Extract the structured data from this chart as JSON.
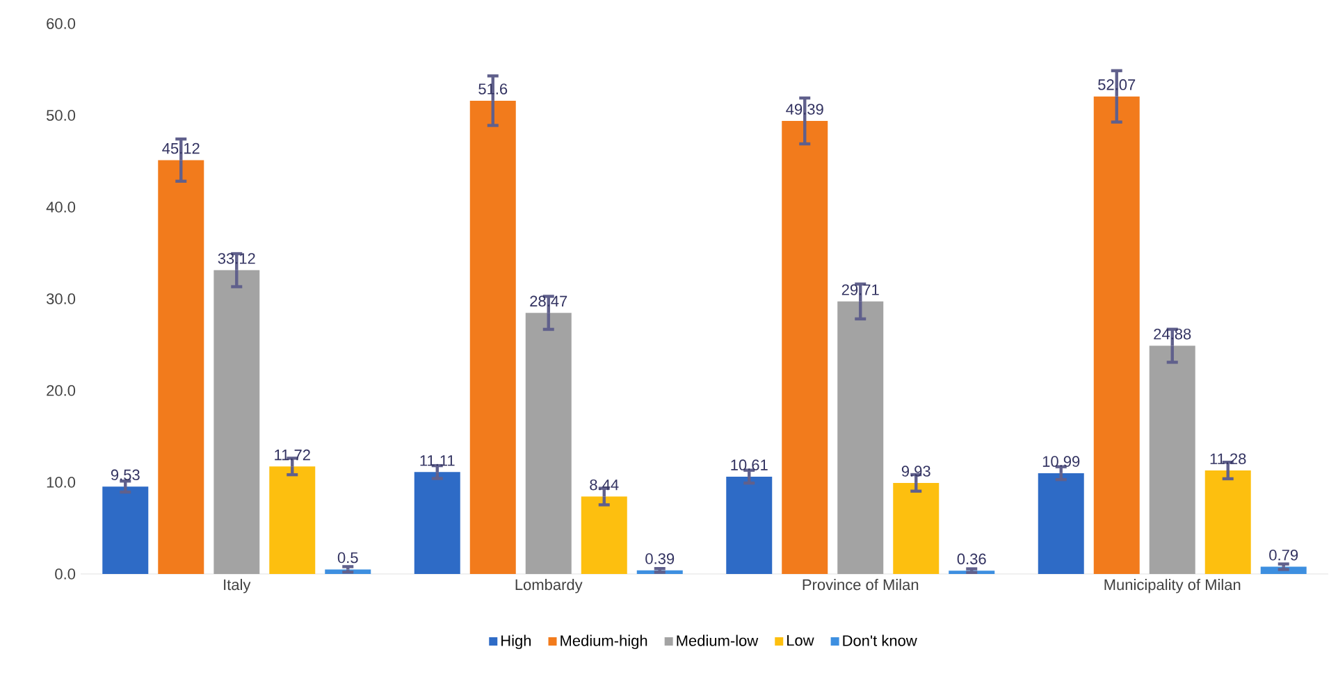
{
  "chart_data": {
    "type": "bar",
    "categories": [
      "Italy",
      "Lombardy",
      "Province of Milan",
      "Municipality of Milan"
    ],
    "series": [
      {
        "name": "High",
        "color": "#2e6bc6",
        "values": [
          9.53,
          11.11,
          10.61,
          10.99
        ],
        "errors": [
          0.6,
          0.7,
          0.7,
          0.7
        ]
      },
      {
        "name": "Medium-high",
        "color": "#f27b1c",
        "values": [
          45.12,
          51.6,
          49.39,
          52.07
        ],
        "errors": [
          2.3,
          2.7,
          2.5,
          2.8
        ]
      },
      {
        "name": "Medium-low",
        "color": "#a3a3a3",
        "values": [
          33.12,
          28.47,
          29.71,
          24.88
        ],
        "errors": [
          1.8,
          1.8,
          1.9,
          1.8
        ]
      },
      {
        "name": "Low",
        "color": "#fdbf0f",
        "values": [
          11.72,
          8.44,
          9.93,
          11.28
        ],
        "errors": [
          0.9,
          0.9,
          0.9,
          0.9
        ]
      },
      {
        "name": "Don't know",
        "color": "#3d8fe0",
        "values": [
          0.5,
          0.39,
          0.36,
          0.79
        ],
        "errors": [
          0.3,
          0.2,
          0.2,
          0.3
        ]
      }
    ],
    "ylim": [
      0,
      60
    ],
    "yticks": [
      {
        "value": 0,
        "label": "0.0"
      },
      {
        "value": 10,
        "label": "10.0"
      },
      {
        "value": 20,
        "label": "20.0"
      },
      {
        "value": 30,
        "label": "30.0"
      },
      {
        "value": 40,
        "label": "40.0"
      },
      {
        "value": 50,
        "label": "50.0"
      },
      {
        "value": 60,
        "label": "60.0"
      }
    ],
    "data_labels": true,
    "grid": false,
    "legend": "bottom"
  }
}
